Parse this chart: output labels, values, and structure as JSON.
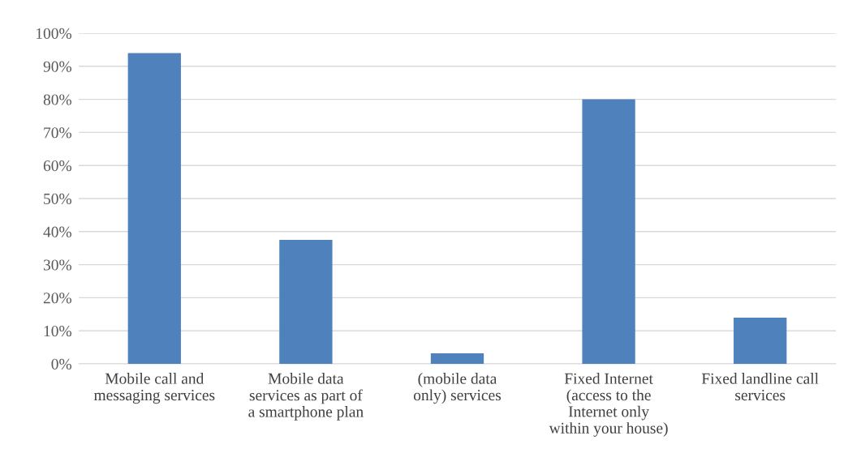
{
  "chart_data": {
    "type": "bar",
    "categories": [
      "Mobile call and\nmessaging services",
      "Mobile data\nservices as part of\na smartphone plan",
      "(mobile data\nonly) services",
      "Fixed Internet\n(access to the\nInternet only\nwithin your house)",
      "Fixed landline call\nservices"
    ],
    "values": [
      94,
      37.5,
      3.2,
      80,
      14
    ],
    "color": "#4f81bd",
    "ylim": [
      0,
      100
    ],
    "yticks": [
      {
        "value": 0,
        "label": "0%"
      },
      {
        "value": 10,
        "label": "10%"
      },
      {
        "value": 20,
        "label": "20%"
      },
      {
        "value": 30,
        "label": "30%"
      },
      {
        "value": 40,
        "label": "40%"
      },
      {
        "value": 50,
        "label": "50%"
      },
      {
        "value": 60,
        "label": "60%"
      },
      {
        "value": 70,
        "label": "70%"
      },
      {
        "value": 80,
        "label": "80%"
      },
      {
        "value": 90,
        "label": "90%"
      },
      {
        "value": 100,
        "label": "100%"
      }
    ],
    "grid": "y",
    "legend": false
  }
}
